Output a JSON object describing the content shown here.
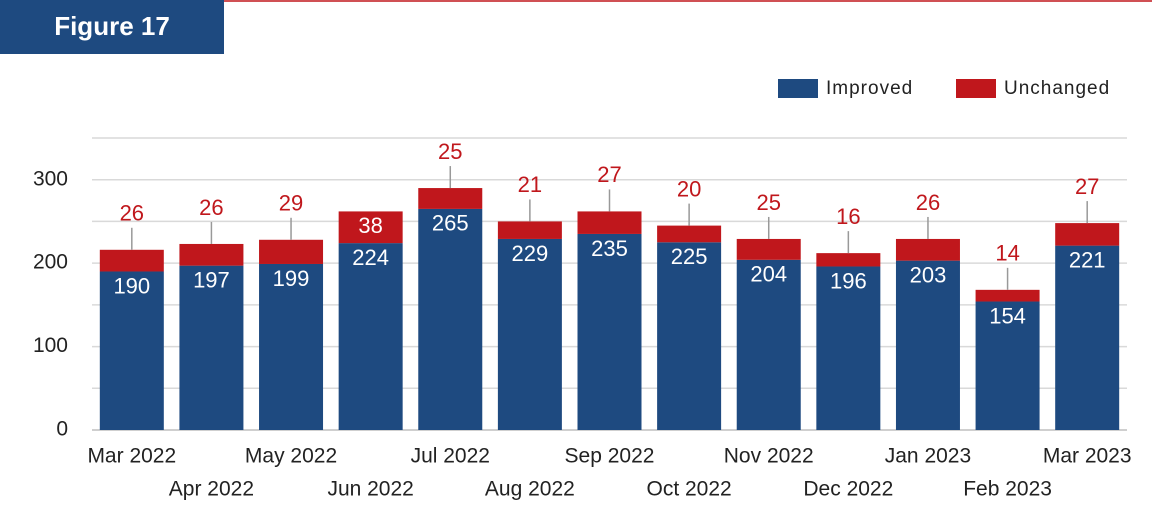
{
  "chart_data": {
    "type": "stacked_bar",
    "title": "Figure 17",
    "categories": [
      "Mar 2022",
      "Apr 2022",
      "May 2022",
      "Jun 2022",
      "Jul 2022",
      "Aug 2022",
      "Sep 2022",
      "Oct 2022",
      "Nov 2022",
      "Dec 2022",
      "Jan 2023",
      "Feb 2023",
      "Mar 2023"
    ],
    "series": [
      {
        "name": "Improved",
        "color": "#1e4a80",
        "values": [
          190,
          197,
          199,
          224,
          265,
          229,
          235,
          225,
          204,
          196,
          203,
          154,
          221
        ]
      },
      {
        "name": "Unchanged",
        "color": "#c0171c",
        "values": [
          26,
          26,
          29,
          38,
          25,
          21,
          27,
          20,
          25,
          16,
          26,
          14,
          27
        ]
      }
    ],
    "ylim": [
      0,
      350
    ],
    "yticks": [
      0,
      100,
      200,
      300
    ],
    "minor_grid": [
      50,
      150,
      250,
      350
    ],
    "grid": true,
    "legend": "top-right"
  }
}
